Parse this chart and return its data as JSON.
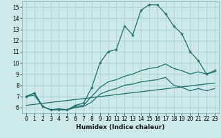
{
  "title": "",
  "xlabel": "Humidex (Indice chaleur)",
  "ylabel": "",
  "background_color": "#cde8e8",
  "grid_color": "#aed4d4",
  "line_color": "#1a6e6a",
  "xlim": [
    -0.5,
    23.5
  ],
  "ylim": [
    5.5,
    15.5
  ],
  "xticks": [
    0,
    1,
    2,
    3,
    4,
    5,
    6,
    7,
    8,
    9,
    10,
    11,
    12,
    13,
    14,
    15,
    16,
    17,
    18,
    19,
    20,
    21,
    22,
    23
  ],
  "yticks": [
    6,
    7,
    8,
    9,
    10,
    11,
    12,
    13,
    14,
    15
  ],
  "line1_x": [
    0,
    1,
    2,
    3,
    4,
    5,
    6,
    7,
    8,
    9,
    10,
    11,
    12,
    13,
    14,
    15,
    16,
    17,
    18,
    19,
    20,
    21,
    22,
    23
  ],
  "line1_y": [
    7.0,
    7.3,
    6.1,
    5.8,
    5.8,
    5.8,
    6.2,
    6.4,
    7.8,
    10.0,
    11.0,
    11.2,
    13.3,
    12.5,
    14.7,
    15.2,
    15.2,
    14.4,
    13.3,
    12.6,
    11.0,
    10.2,
    9.0,
    9.3
  ],
  "line2_x": [
    0,
    1,
    2,
    3,
    4,
    5,
    6,
    7,
    8,
    9,
    10,
    11,
    12,
    13,
    14,
    15,
    16,
    17,
    18,
    19,
    20,
    21,
    22,
    23
  ],
  "line2_y": [
    7.0,
    7.3,
    6.1,
    5.8,
    5.9,
    5.8,
    6.1,
    6.2,
    7.0,
    7.8,
    8.3,
    8.5,
    8.8,
    9.0,
    9.3,
    9.5,
    9.6,
    9.9,
    9.5,
    9.3,
    9.0,
    9.2,
    9.0,
    9.2
  ],
  "line3_x": [
    0,
    1,
    2,
    3,
    4,
    5,
    6,
    7,
    8,
    9,
    10,
    11,
    12,
    13,
    14,
    15,
    16,
    17,
    18,
    19,
    20,
    21,
    22,
    23
  ],
  "line3_y": [
    7.0,
    7.1,
    6.1,
    5.8,
    5.8,
    5.8,
    6.0,
    6.1,
    6.5,
    7.2,
    7.5,
    7.7,
    8.0,
    8.1,
    8.3,
    8.4,
    8.5,
    8.7,
    8.0,
    7.8,
    7.5,
    7.7,
    7.5,
    7.7
  ],
  "line4_x": [
    0,
    23
  ],
  "line4_y": [
    6.2,
    8.2
  ]
}
